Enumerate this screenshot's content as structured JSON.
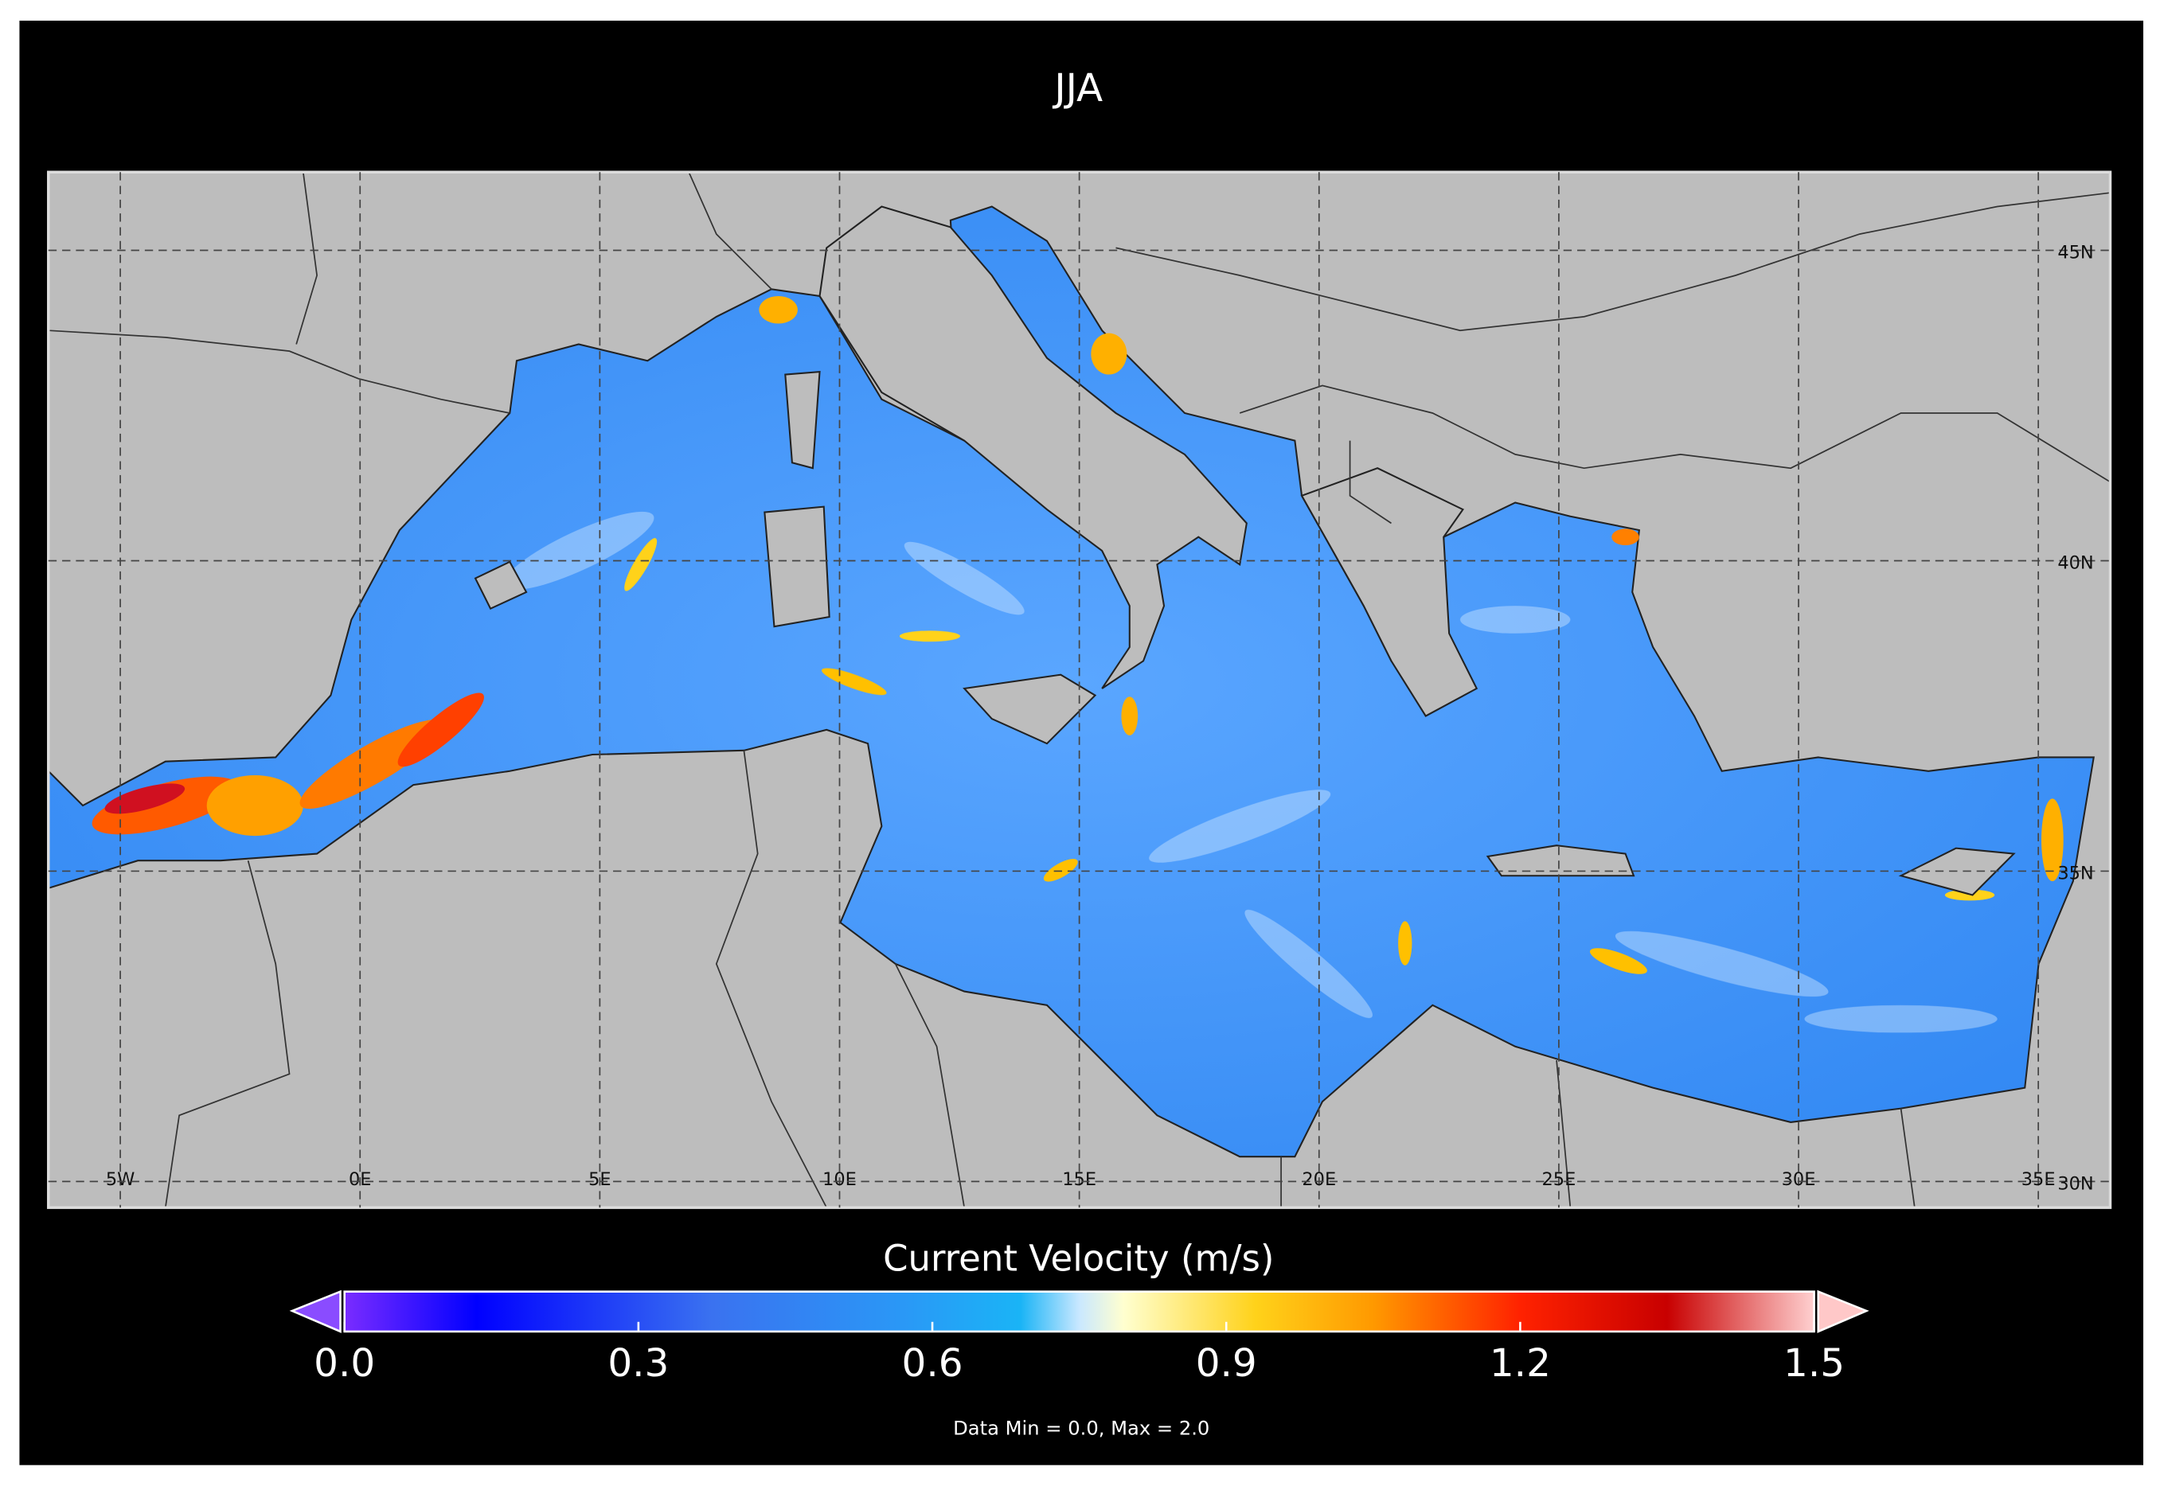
{
  "title": "JJA",
  "map": {
    "lonlim": [
      -6.5,
      36.5
    ],
    "latlim": [
      29.58,
      46.26
    ],
    "lon_ticks": [
      {
        "value": -5,
        "label": "5W"
      },
      {
        "value": 0,
        "label": "0E"
      },
      {
        "value": 5,
        "label": "5E"
      },
      {
        "value": 10,
        "label": "10E"
      },
      {
        "value": 15,
        "label": "15E"
      },
      {
        "value": 20,
        "label": "20E"
      },
      {
        "value": 25,
        "label": "25E"
      },
      {
        "value": 30,
        "label": "30E"
      },
      {
        "value": 35,
        "label": "35E"
      }
    ],
    "lat_ticks": [
      {
        "value": 45,
        "label": "45N"
      },
      {
        "value": 40,
        "label": "40N"
      },
      {
        "value": 35,
        "label": "35N"
      },
      {
        "value": 30,
        "label": "30N"
      }
    ]
  },
  "colorbar": {
    "label": "Current Velocity (m/s)",
    "lim": [
      0,
      1.5
    ],
    "ticks": [
      {
        "value": 0,
        "label": "0.0"
      },
      {
        "value": 0.3,
        "label": "0.3"
      },
      {
        "value": 0.6,
        "label": "0.6"
      },
      {
        "value": 0.9,
        "label": "0.9"
      },
      {
        "value": 1.2,
        "label": "1.2"
      },
      {
        "value": 1.5,
        "label": "1.5"
      }
    ]
  },
  "note": "Data Min = 0.0, Max = 2.0"
}
